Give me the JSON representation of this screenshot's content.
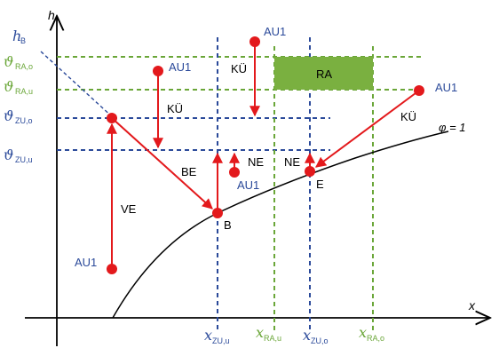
{
  "axes": {
    "y_label": "h",
    "x_label": "x"
  },
  "left_labels": {
    "hB": {
      "main": "h",
      "sub": "B"
    },
    "theta_ra_o": {
      "main": "ϑ",
      "sub": "RA,o"
    },
    "theta_ra_u": {
      "main": "ϑ",
      "sub": "RA,u"
    },
    "theta_zu_o": {
      "main": "ϑ",
      "sub": "ZU,o"
    },
    "theta_zu_u": {
      "main": "ϑ",
      "sub": "ZU,u"
    }
  },
  "bottom_labels": {
    "x_zu_u": {
      "main": "x",
      "sub": "ZU,u"
    },
    "x_ra_u": {
      "main": "x",
      "sub": "RA,u"
    },
    "x_zu_o": {
      "main": "x",
      "sub": "ZU,o"
    },
    "x_ra_o": {
      "main": "x",
      "sub": "RA,o"
    }
  },
  "curve_label": "φ = 1",
  "ra_box": "RA",
  "process_labels": {
    "ve": "VE",
    "be": "BE",
    "ku_left": "KÜ",
    "ku_mid": "KÜ",
    "ku_right": "KÜ",
    "ne_mid": "NE",
    "ne_right": "NE"
  },
  "points": {
    "au1_bottom": "AU1",
    "au1_top_left": "AU1",
    "au1_top_mid": "AU1",
    "au1_right": "AU1",
    "au1_mid_low": "AU1",
    "b": "B",
    "e": "E"
  },
  "colors": {
    "red": "#e3191c",
    "blue": "#2b4a9a",
    "green": "#6aa638",
    "ra_fill": "#7ab040"
  }
}
